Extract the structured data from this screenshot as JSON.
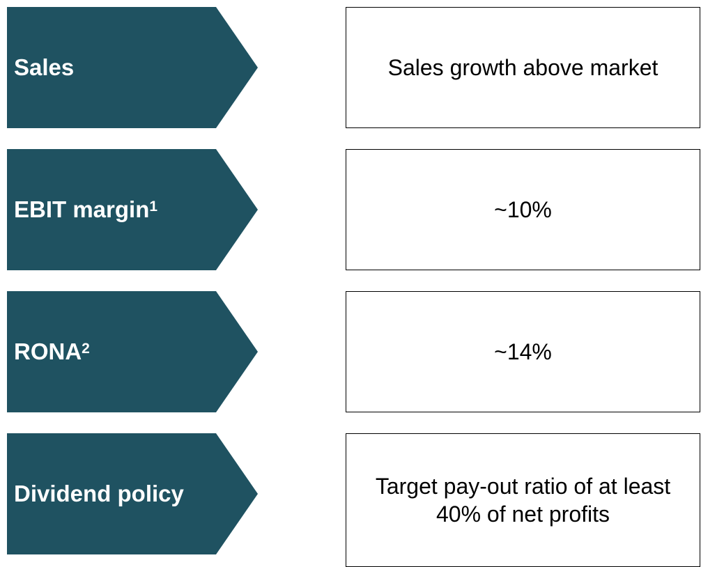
{
  "rows": [
    {
      "label": "Sales",
      "sup": null,
      "lines": [
        "Sales growth above market"
      ]
    },
    {
      "label": "EBIT margin",
      "sup": "1",
      "lines": [
        "~10%"
      ]
    },
    {
      "label": "RONA",
      "sup": "2",
      "lines": [
        "~14%"
      ]
    },
    {
      "label": "Dividend policy",
      "sup": null,
      "lines": [
        "Target pay-out ratio of at least",
        "40% of net profits"
      ]
    }
  ]
}
